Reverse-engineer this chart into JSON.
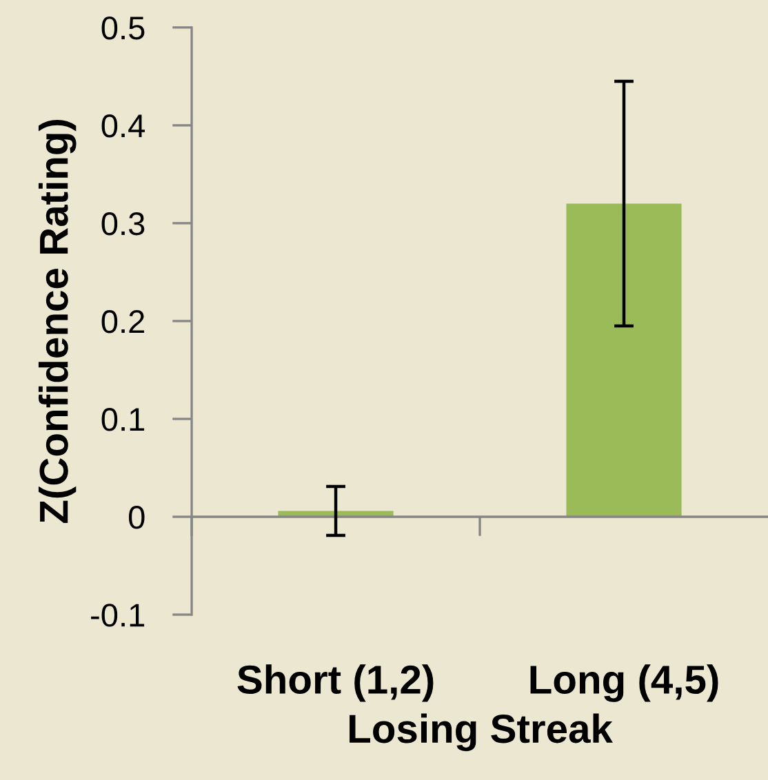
{
  "chart_data": {
    "type": "bar",
    "xlabel": "Losing Streak",
    "ylabel": "Z(Confidence Rating)",
    "categories": [
      "Short (1,2)",
      "Long (4,5)"
    ],
    "values": [
      0.006,
      0.32
    ],
    "errors": [
      0.025,
      0.125
    ],
    "color": "#9bbb59",
    "ylim": [
      -0.1,
      0.5
    ],
    "yticks": [
      -0.1,
      0,
      0.1,
      0.2,
      0.3,
      0.4,
      0.5
    ]
  }
}
